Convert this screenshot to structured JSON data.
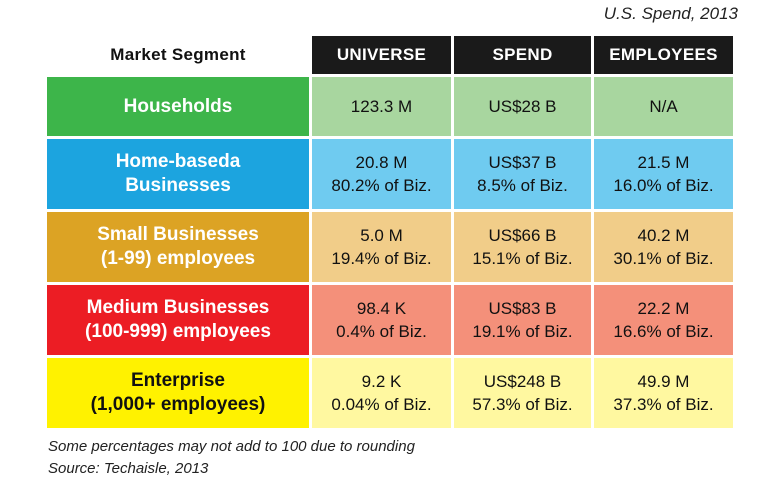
{
  "chart_data": {
    "type": "table",
    "title": "U.S. Spend, 2013",
    "columns": [
      "Market Segment",
      "UNIVERSE",
      "SPEND",
      "EMPLOYEES"
    ],
    "rows": [
      {
        "segment": [
          "Households"
        ],
        "universe": [
          "123.3 M"
        ],
        "spend": [
          "US$28 B"
        ],
        "employees": [
          "N/A"
        ],
        "segment_color": "#3db54a",
        "cell_color": "#a8d69f"
      },
      {
        "segment": [
          "Home-baseda",
          "Businesses"
        ],
        "universe": [
          "20.8 M",
          "80.2% of Biz."
        ],
        "spend": [
          "US$37 B",
          "8.5% of Biz."
        ],
        "employees": [
          "21.5 M",
          "16.0% of Biz."
        ],
        "segment_color": "#1ca4df",
        "cell_color": "#6fcbf0"
      },
      {
        "segment": [
          "Small Businesses",
          "(1-99) employees"
        ],
        "universe": [
          "5.0 M",
          "19.4% of Biz."
        ],
        "spend": [
          "US$66 B",
          "15.1% of Biz."
        ],
        "employees": [
          "40.2 M",
          "30.1% of Biz."
        ],
        "segment_color": "#dca324",
        "cell_color": "#f1cd89"
      },
      {
        "segment": [
          "Medium Businesses",
          "(100-999) employees"
        ],
        "universe": [
          "98.4 K",
          "0.4% of Biz."
        ],
        "spend": [
          "US$83 B",
          "19.1% of Biz."
        ],
        "employees": [
          "22.2 M",
          "16.6% of Biz."
        ],
        "segment_color": "#ec1d24",
        "cell_color": "#f4907a"
      },
      {
        "segment": [
          "Enterprise",
          "(1,000+ employees)"
        ],
        "universe": [
          "9.2 K",
          "0.04% of Biz."
        ],
        "spend": [
          "US$248 B",
          "57.3% of Biz."
        ],
        "employees": [
          "49.9 M",
          "37.3% of Biz."
        ],
        "segment_color": "#fff200",
        "segment_text_color": "#111111",
        "cell_color": "#fff8a0"
      }
    ],
    "notes": [
      "Some percentages may not add to 100 due to rounding",
      "Source: Techaisle, 2013"
    ]
  }
}
